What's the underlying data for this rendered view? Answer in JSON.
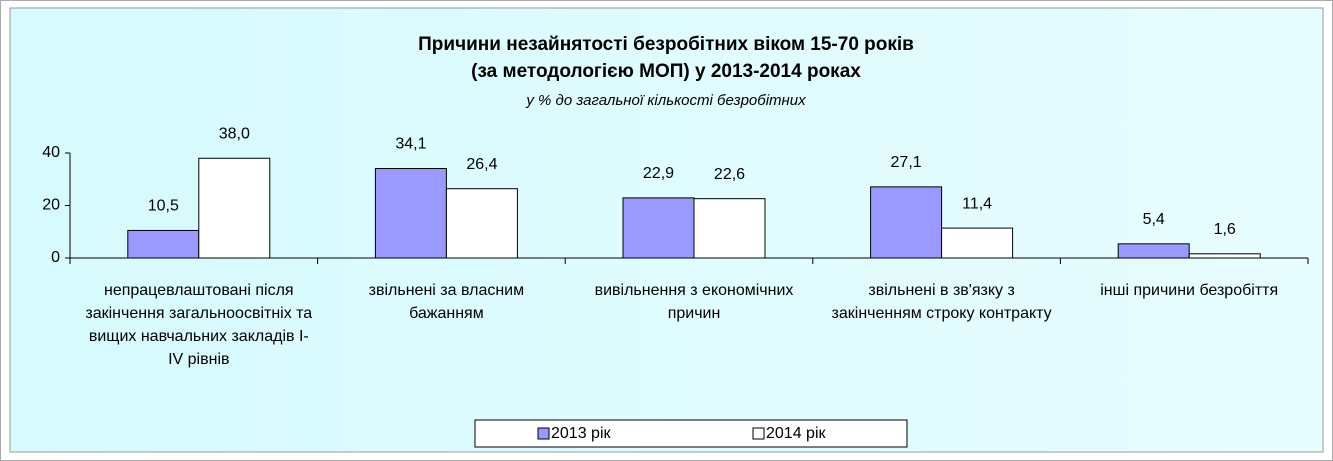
{
  "chart_data": {
    "type": "bar",
    "title": [
      "Причини незайнятості безробітних віком 15-70 років",
      "(за методологією МОП) у 2013-2014 роках"
    ],
    "subtitle": "у % до загальної кількості безробітних",
    "categories": [
      "непрацевлаштовані після закінчення загальноосвітніх та вищих навчальних закладів І-ІV рівнів",
      "звільнені за власним бажанням",
      "вивільнення з економічних причин",
      "звільнені в зв'язку з закінченням строку контракту",
      "інші причини безробіття"
    ],
    "series": [
      {
        "name": "2013 рік",
        "color": "#9999ff",
        "values": [
          10.5,
          34.1,
          22.9,
          27.1,
          5.4
        ],
        "value_labels": [
          "10,5",
          "34,1",
          "22,9",
          "27,1",
          "5,4"
        ]
      },
      {
        "name": "2014 рік",
        "color": "#ffffff",
        "values": [
          38.0,
          26.4,
          22.6,
          11.4,
          1.6
        ],
        "value_labels": [
          "38,0",
          "26,4",
          "22,6",
          "11,4",
          "1,6"
        ]
      }
    ],
    "ylim": [
      0,
      40
    ],
    "yticks": [
      0,
      20,
      40
    ],
    "grid": false,
    "legend": "bottom"
  }
}
